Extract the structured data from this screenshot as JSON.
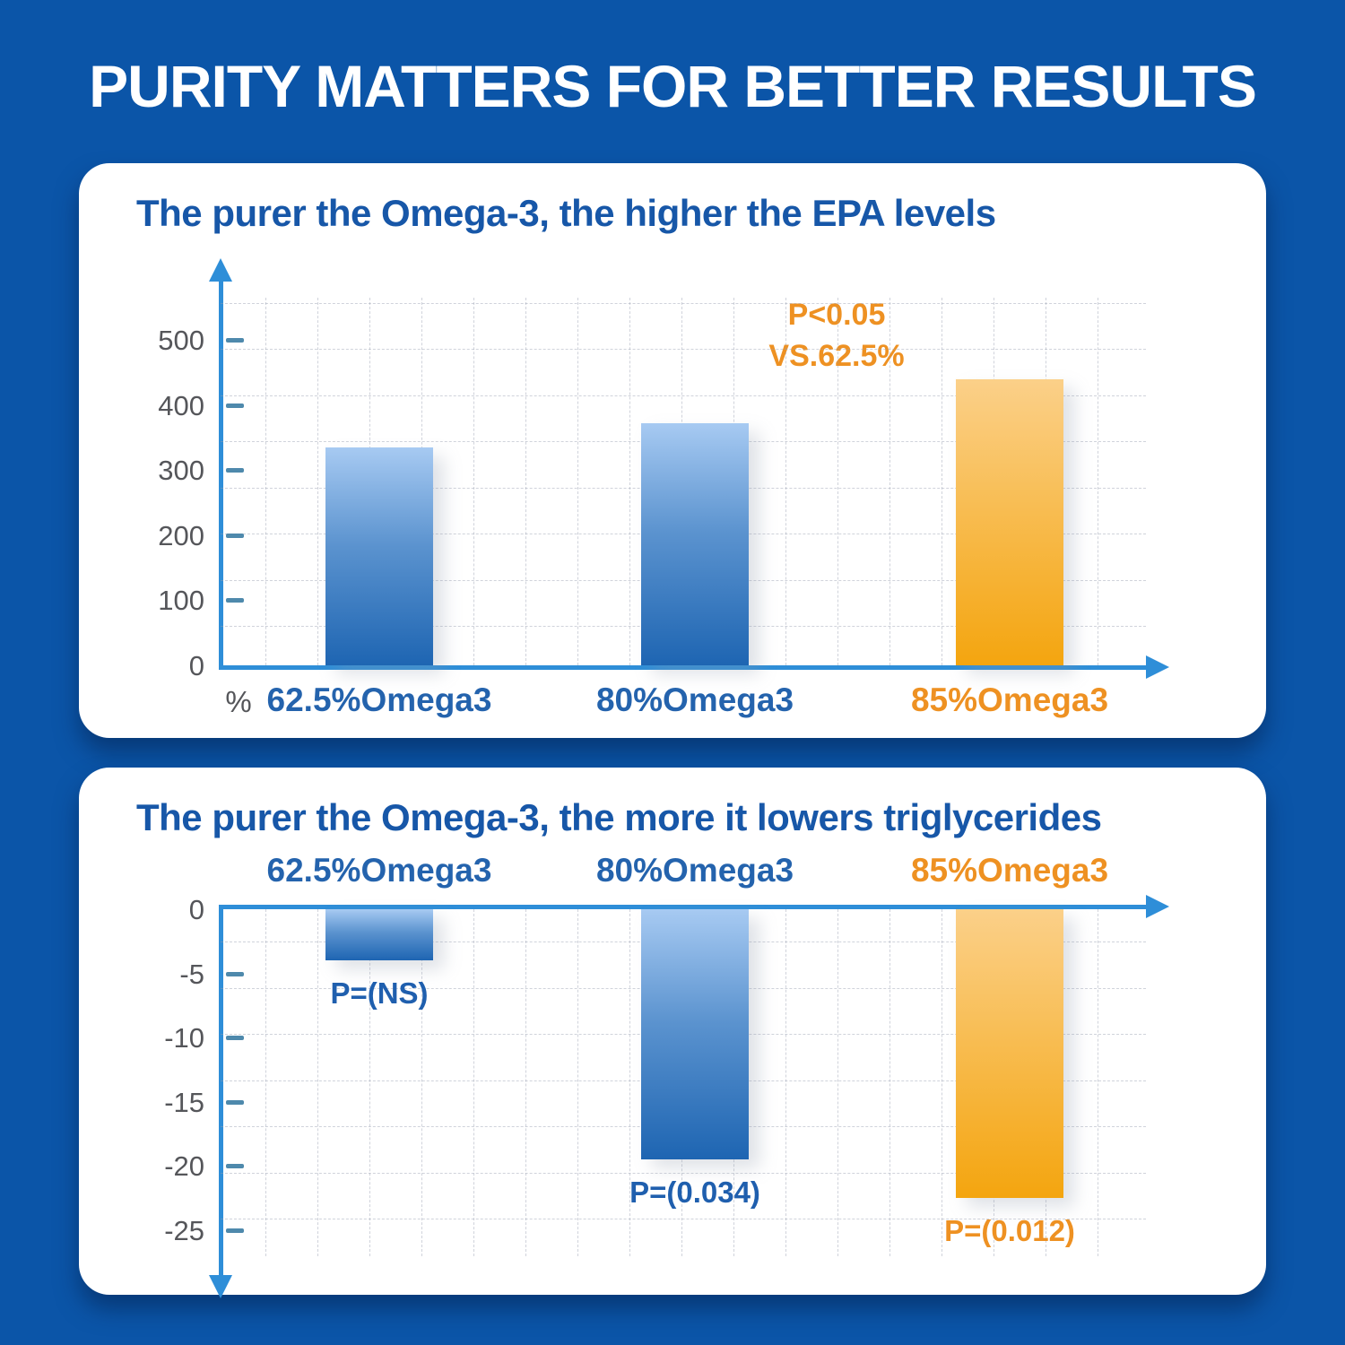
{
  "page": {
    "title": "PURITY MATTERS FOR BETTER RESULTS"
  },
  "colors": {
    "background_blue": "#0B55A8",
    "card_white": "#FFFFFF",
    "heading_blue": "#1757A8",
    "axis_blue": "#2E8ED8",
    "tick_dash_blue": "#4E89AC",
    "tick_text_gray": "#55565A",
    "category_blue": "#2463AD",
    "accent_orange": "#EE9122",
    "bar_blue_top": "#A7CAF2",
    "bar_blue_bottom": "#1E65B2",
    "bar_orange_top": "#FBD089",
    "bar_orange_bottom": "#F4A50F"
  },
  "chart_data": [
    {
      "type": "bar",
      "title": "The purer the Omega-3, the higher the EPA levels",
      "categories": [
        "62.5%Omega3",
        "80%Omega3",
        "85%Omega3"
      ],
      "values": [
        335,
        372,
        440
      ],
      "bar_colors": [
        "blue",
        "blue",
        "orange"
      ],
      "category_colors": [
        "blue",
        "blue",
        "orange"
      ],
      "yticks": [
        500,
        400,
        300,
        200,
        100,
        0
      ],
      "ylim": [
        0,
        560
      ],
      "unit_label": "%",
      "annotation_line1": "P<0.05",
      "annotation_line2": "VS.62.5%",
      "grid": true,
      "legend": "none"
    },
    {
      "type": "bar",
      "title": "The purer the Omega-3, the more it lowers triglycerides",
      "categories": [
        "62.5%Omega3",
        "80%Omega3",
        "85%Omega3"
      ],
      "values": [
        -4,
        -19.5,
        -22.5
      ],
      "bar_labels": [
        "P=(NS)",
        "P=(0.034)",
        "P=(0.012)"
      ],
      "bar_colors": [
        "blue",
        "blue",
        "orange"
      ],
      "category_colors": [
        "blue",
        "blue",
        "orange"
      ],
      "yticks": [
        0,
        -5,
        -10,
        -15,
        -20,
        -25
      ],
      "ylim": [
        0,
        -27.5
      ],
      "grid": true,
      "legend": "none"
    }
  ]
}
